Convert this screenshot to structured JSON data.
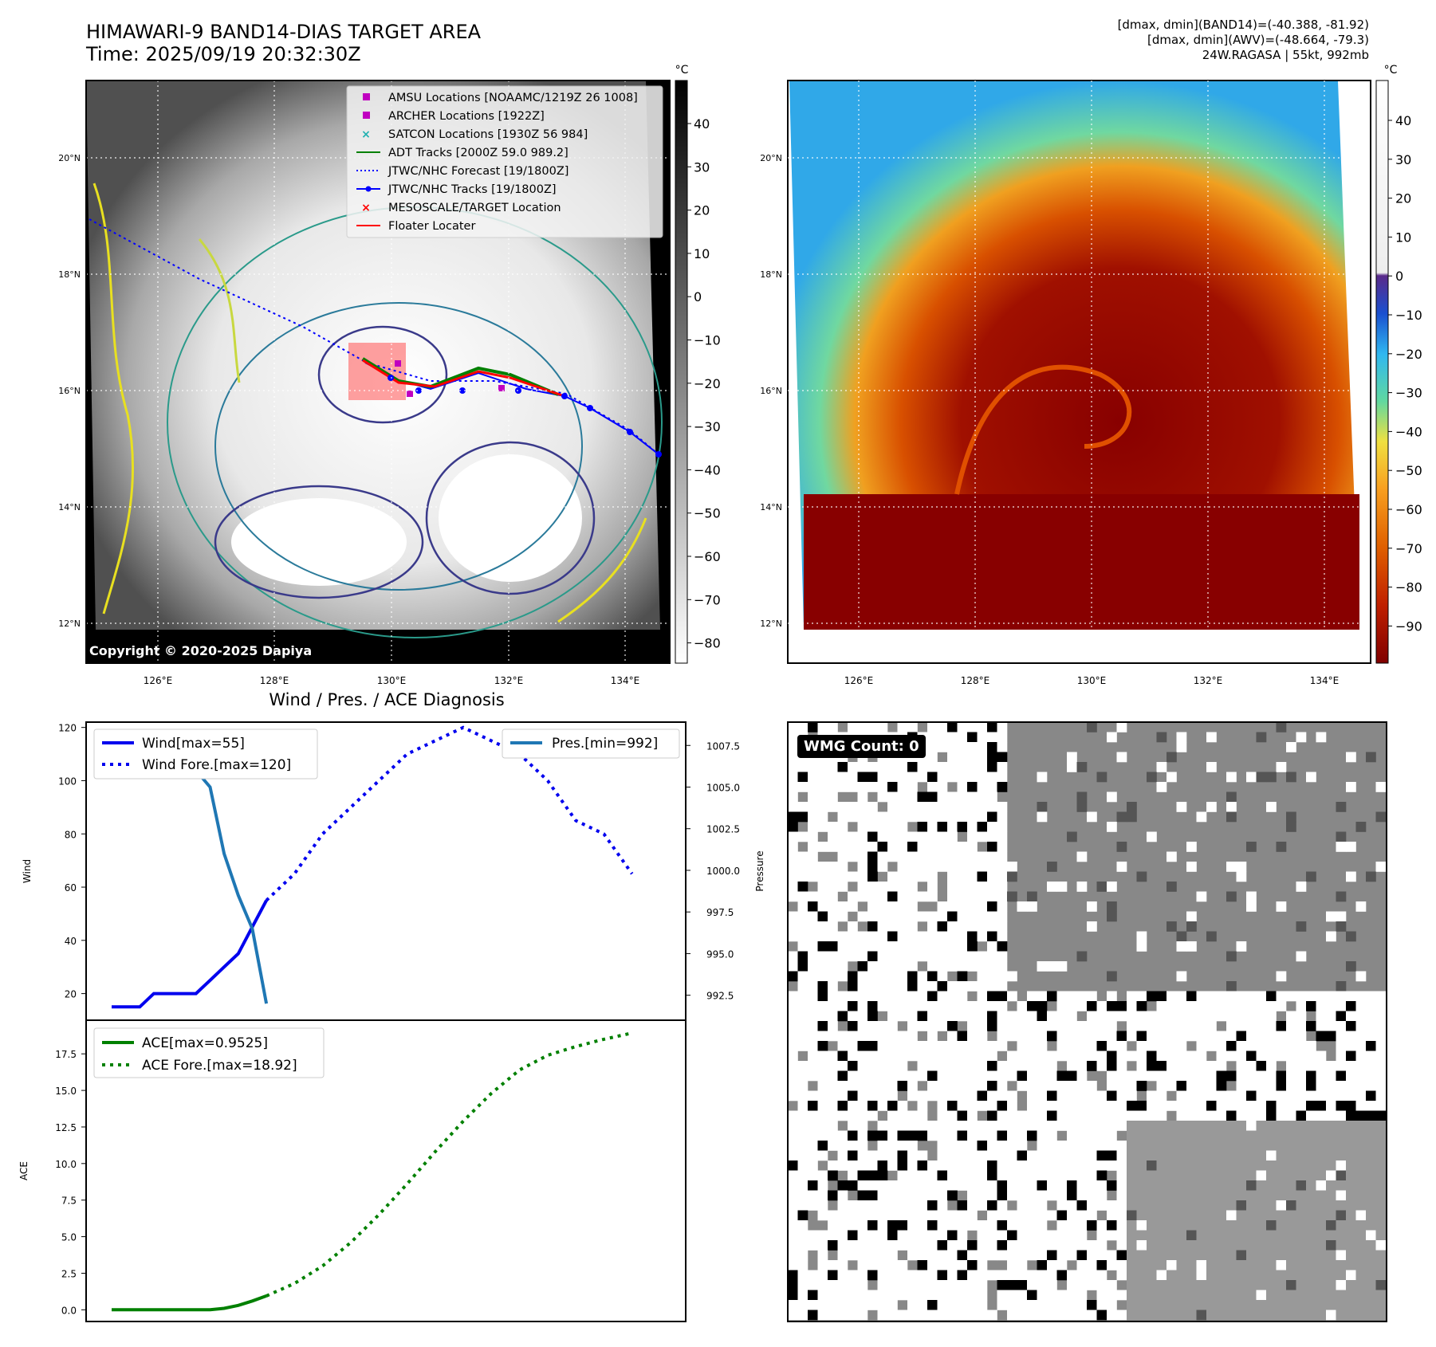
{
  "header": {
    "title_line1": "HIMAWARI-9 BAND14-DIAS TARGET AREA",
    "title_line2": "Time: 2025/09/19 20:32:30Z",
    "info_line1": "[dmax, dmin](BAND14)=(-40.388, -81.92)",
    "info_line2": "[dmax, dmin](AWV)=(-48.664, -79.3)",
    "info_line3": "24W.RAGASA | 55kt, 992mb"
  },
  "map": {
    "lat_ticks": [
      "20°N",
      "18°N",
      "16°N",
      "14°N",
      "12°N"
    ],
    "lon_ticks": [
      "126°E",
      "128°E",
      "130°E",
      "132°E",
      "134°E"
    ],
    "copyright": "Copyright © 2020-2025 Dapiya",
    "legend": [
      {
        "label": "AMSU Locations [NOAAMC/1219Z 26 1008]",
        "marker": "square",
        "color": "#c000c0"
      },
      {
        "label": "ARCHER Locations [1922Z]",
        "marker": "square",
        "color": "#c000c0"
      },
      {
        "label": "SATCON Locations [1930Z 56 984]",
        "marker": "x",
        "color": "#20b0b0"
      },
      {
        "label": "ADT Tracks [2000Z 59.0 989.2]",
        "marker": "line",
        "color": "#008000"
      },
      {
        "label": "JTWC/NHC Forecast [19/1800Z]",
        "marker": "dotted",
        "color": "#0000ff"
      },
      {
        "label": "JTWC/NHC Tracks [19/1800Z]",
        "marker": "line-dot",
        "color": "#0000ff"
      },
      {
        "label": "MESOSCALE/TARGET Location",
        "marker": "x",
        "color": "#ff0000"
      },
      {
        "label": "Floater Locater",
        "marker": "line",
        "color": "#ff0000"
      }
    ],
    "colorbar_unit": "°C",
    "colorbar_gray_ticks": [
      "40",
      "30",
      "20",
      "10",
      "0",
      "−10",
      "−20",
      "−30",
      "−40",
      "−50",
      "−60",
      "−70",
      "−80"
    ],
    "colorbar_color_ticks": [
      "40",
      "30",
      "20",
      "10",
      "0",
      "−10",
      "−20",
      "−30",
      "−40",
      "−50",
      "−60",
      "−70",
      "−80",
      "−90"
    ]
  },
  "chart_data": [
    {
      "type": "line",
      "title": "Wind / Pres. / ACE Diagnosis",
      "ylabel": "Wind",
      "ylabel_right": "Pressure",
      "ylim": [
        10,
        122
      ],
      "ylim_right": [
        991.0,
        1008.9
      ],
      "yticks": [
        "20",
        "40",
        "60",
        "80",
        "100",
        "120"
      ],
      "yticks_right": [
        "992.5",
        "995.0",
        "997.5",
        "1000.0",
        "1002.5",
        "1005.0",
        "1007.5"
      ],
      "legend_left": [
        "Wind[max=55]",
        "Wind Fore.[max=120]"
      ],
      "legend_right": [
        "Pres.[min=992]"
      ],
      "series": [
        {
          "name": "Wind[max=55]",
          "style": "solid",
          "color": "#0000ee",
          "x": [
            0,
            1,
            2,
            3,
            4,
            5,
            6,
            7,
            8,
            9,
            10,
            11
          ],
          "values": [
            15,
            15,
            15,
            20,
            20,
            20,
            20,
            25,
            30,
            35,
            45,
            55
          ]
        },
        {
          "name": "Wind Fore.[max=120]",
          "style": "dotted",
          "color": "#0000ee",
          "x": [
            11,
            13,
            15,
            17,
            19,
            21,
            23,
            25,
            27,
            29,
            31,
            33,
            35,
            37
          ],
          "values": [
            55,
            65,
            80,
            90,
            100,
            110,
            115,
            120,
            115,
            110,
            100,
            85,
            80,
            65
          ]
        },
        {
          "name": "Pres.[min=992]",
          "style": "solid",
          "color": "#1f77b4",
          "x": [
            0,
            1,
            2,
            3,
            4,
            5,
            6,
            7,
            8,
            9,
            10,
            11
          ],
          "values": [
            1008,
            1007,
            1007,
            1007,
            1007.5,
            1007.5,
            1006,
            1005,
            1001,
            998.5,
            996.5,
            992
          ]
        }
      ]
    },
    {
      "type": "line",
      "ylabel": "ACE",
      "ylim": [
        -0.8,
        19.8
      ],
      "yticks": [
        "0.0",
        "2.5",
        "5.0",
        "7.5",
        "10.0",
        "12.5",
        "15.0",
        "17.5"
      ],
      "legend": [
        "ACE[max=0.9525]",
        "ACE Fore.[max=18.92]"
      ],
      "series": [
        {
          "name": "ACE[max=0.9525]",
          "style": "solid",
          "color": "#008000",
          "x": [
            0,
            1,
            2,
            3,
            4,
            5,
            6,
            7,
            8,
            9,
            10,
            11
          ],
          "values": [
            0,
            0,
            0,
            0,
            0,
            0,
            0,
            0,
            0.1,
            0.3,
            0.6,
            0.95
          ]
        },
        {
          "name": "ACE Fore.[max=18.92]",
          "style": "dotted",
          "color": "#008000",
          "x": [
            11,
            13,
            15,
            17,
            19,
            21,
            23,
            25,
            27,
            29,
            31,
            33,
            35,
            37
          ],
          "values": [
            0.95,
            1.8,
            3.0,
            4.6,
            6.5,
            8.6,
            10.8,
            12.9,
            14.8,
            16.4,
            17.4,
            18.0,
            18.5,
            18.92
          ]
        }
      ]
    }
  ],
  "wmg": {
    "label": "WMG Count: 0"
  }
}
